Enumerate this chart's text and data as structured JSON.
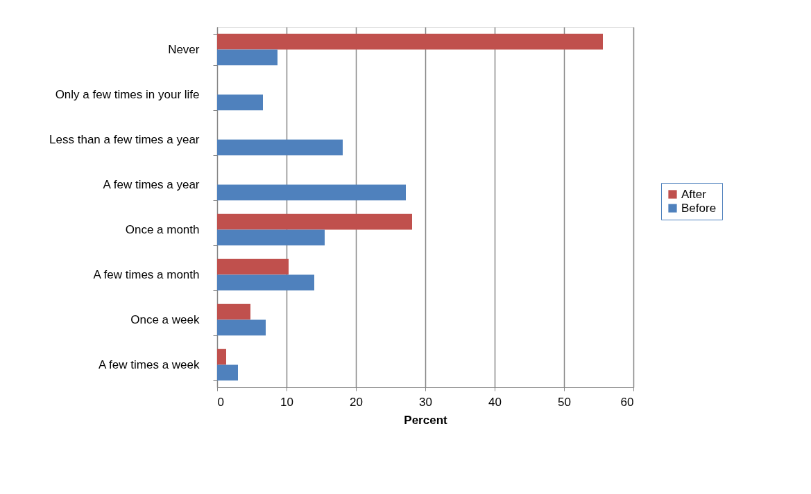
{
  "chart_data": {
    "type": "bar",
    "orientation": "horizontal",
    "xlabel": "Percent",
    "categories": [
      "Never",
      "Only a few times in your life",
      "Less than a few times a year",
      "A few times a year",
      "Once a month",
      "A few times a month",
      "Once a week",
      "A few times a week"
    ],
    "series": [
      {
        "name": "After",
        "color": "#c0504d",
        "values": [
          55.6,
          null,
          null,
          null,
          28.1,
          10.3,
          4.8,
          1.3
        ]
      },
      {
        "name": "Before",
        "color": "#4f81bd",
        "values": [
          8.7,
          6.6,
          18.1,
          27.2,
          15.5,
          14.0,
          7.0,
          3.0
        ]
      }
    ],
    "xlim": [
      0,
      60
    ],
    "xticks": [
      0,
      10,
      20,
      30,
      40,
      50,
      60
    ],
    "grid": "x",
    "legend": "right"
  }
}
